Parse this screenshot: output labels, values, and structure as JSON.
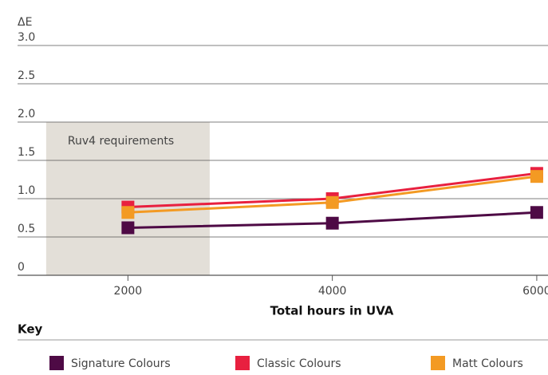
{
  "chart_data": {
    "type": "line",
    "y_label": "ΔE",
    "x_label": "Total hours in UVA",
    "legend_title": "Key",
    "annotation": {
      "text": "Ruv4 requirements",
      "xrange": [
        1200,
        2800
      ],
      "ytop": 2.0,
      "color": "#e3dfd8"
    },
    "x": [
      2000,
      4000,
      6000
    ],
    "series": [
      {
        "name": "Signature Colours",
        "color": "#4e0a45",
        "values": [
          0.62,
          0.68,
          0.82
        ]
      },
      {
        "name": "Classic Colours",
        "color": "#e8203f",
        "values": [
          0.89,
          1.0,
          1.33
        ]
      },
      {
        "name": "Matt Colours",
        "color": "#f39a23",
        "values": [
          0.82,
          0.95,
          1.29
        ]
      }
    ],
    "xlim": [
      920,
      6110
    ],
    "xticks": [
      2000,
      4000,
      6000
    ],
    "ylim": [
      0,
      3.0
    ],
    "yticks": [
      0,
      0.5,
      {
        "value": 1,
        "label": "1.0"
      },
      1.5,
      {
        "value": 2,
        "label": "2.0"
      },
      2.5,
      {
        "value": 3,
        "label": "3.0"
      }
    ],
    "grid": true
  }
}
